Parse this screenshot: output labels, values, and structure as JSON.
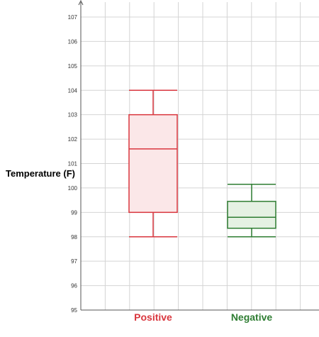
{
  "chart_data": {
    "type": "box",
    "ylabel": "Temperature (F)",
    "ylim": [
      95,
      107
    ],
    "yticks": [
      95,
      96,
      97,
      98,
      99,
      100,
      101,
      102,
      103,
      104,
      105,
      106,
      107
    ],
    "grid": true,
    "categories": [
      "Positive",
      "Negative"
    ],
    "series": [
      {
        "category": "Positive",
        "min": 98,
        "q1": 99,
        "median": 101.6,
        "q3": 103,
        "max": 104,
        "color": "#d9363e",
        "fill": "#fbe7e8"
      },
      {
        "category": "Negative",
        "min": 98,
        "q1": 98.35,
        "median": 98.8,
        "q3": 99.45,
        "max": 100.15,
        "color": "#2e7d32",
        "fill": "#e5f1e3"
      }
    ]
  }
}
